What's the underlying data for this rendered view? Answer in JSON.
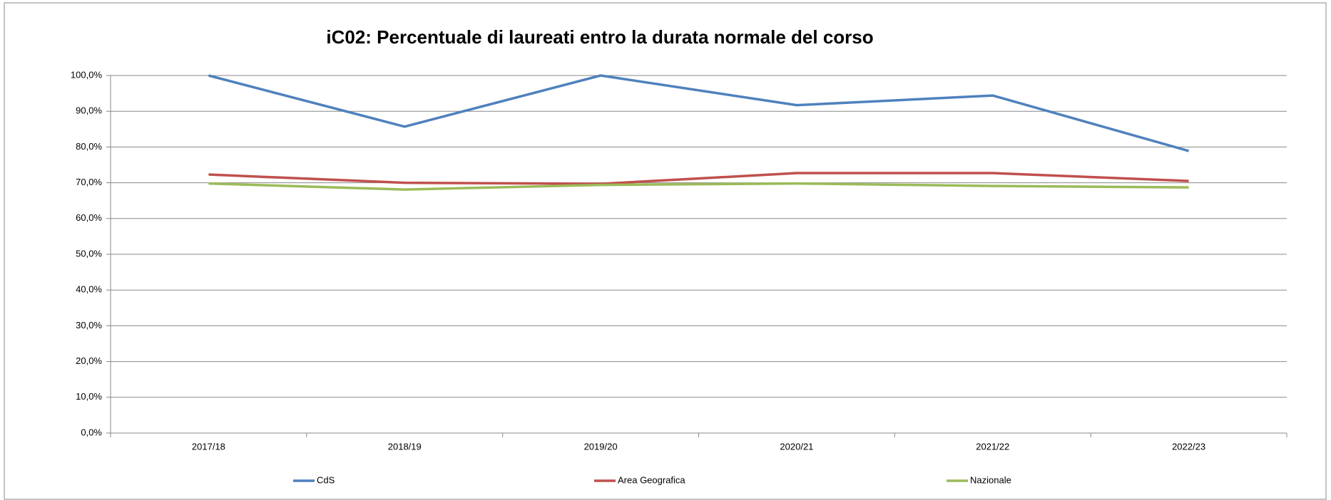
{
  "chart_data": {
    "type": "line",
    "title": "iC02: Percentuale di laureati entro la durata normale del corso",
    "categories": [
      "2017/18",
      "2018/19",
      "2019/20",
      "2020/21",
      "2021/22",
      "2022/23"
    ],
    "series": [
      {
        "name": "CdS",
        "color": "#4f81bd",
        "values": [
          100,
          85.7,
          100,
          91.7,
          94.4,
          78.9
        ]
      },
      {
        "name": "Area Geografica",
        "color": "#c0504d",
        "values": [
          72.3,
          70.0,
          69.7,
          72.7,
          72.7,
          70.5
        ]
      },
      {
        "name": "Nazionale",
        "color": "#9bbb59",
        "values": [
          69.8,
          68.1,
          69.4,
          69.8,
          69.1,
          68.7
        ]
      }
    ],
    "ylim": [
      0,
      100
    ],
    "yticks": [
      {
        "value": 0,
        "label": "0,0%"
      },
      {
        "value": 10,
        "label": "10,0%"
      },
      {
        "value": 20,
        "label": "20,0%"
      },
      {
        "value": 30,
        "label": "30,0%"
      },
      {
        "value": 40,
        "label": "40,0%"
      },
      {
        "value": 50,
        "label": "50,0%"
      },
      {
        "value": 60,
        "label": "60,0%"
      },
      {
        "value": 70,
        "label": "70,0%"
      },
      {
        "value": 80,
        "label": "80,0%"
      },
      {
        "value": 90,
        "label": "90,0%"
      },
      {
        "value": 100,
        "label": "100,0%"
      }
    ],
    "grid": true,
    "legend": "bottom"
  }
}
